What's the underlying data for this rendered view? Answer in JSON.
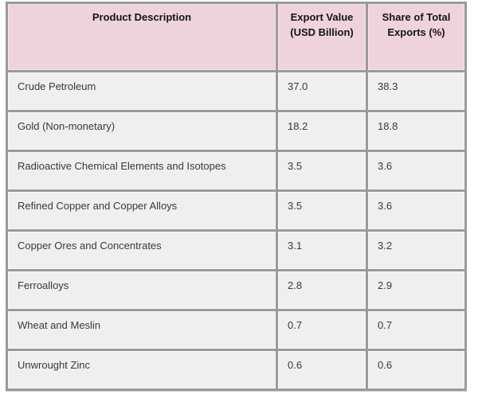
{
  "chart_data": {
    "type": "table",
    "columns": [
      "Product Description",
      "Export Value (USD Billion)",
      "Share of Total Exports (%)"
    ],
    "rows": [
      [
        "Crude Petroleum",
        "37.0",
        "38.3"
      ],
      [
        "Gold (Non-monetary)",
        "18.2",
        "18.8"
      ],
      [
        "Radioactive Chemical Elements and Isotopes",
        "3.5",
        "3.6"
      ],
      [
        "Refined Copper and Copper Alloys",
        "3.5",
        "3.6"
      ],
      [
        "Copper Ores and Concentrates",
        "3.1",
        "3.2"
      ],
      [
        "Ferroalloys",
        "2.8",
        "2.9"
      ],
      [
        "Wheat and Meslin",
        "0.7",
        "0.7"
      ],
      [
        "Unwrought Zinc",
        "0.6",
        "0.6"
      ]
    ],
    "colors": {
      "header_bg": "#eed3de",
      "row_bg": "#efefef",
      "grid_border": "#9a9a9a",
      "header_text": "#141414",
      "body_text": "#3a3a3a",
      "page_bg": "#ffffff"
    }
  }
}
